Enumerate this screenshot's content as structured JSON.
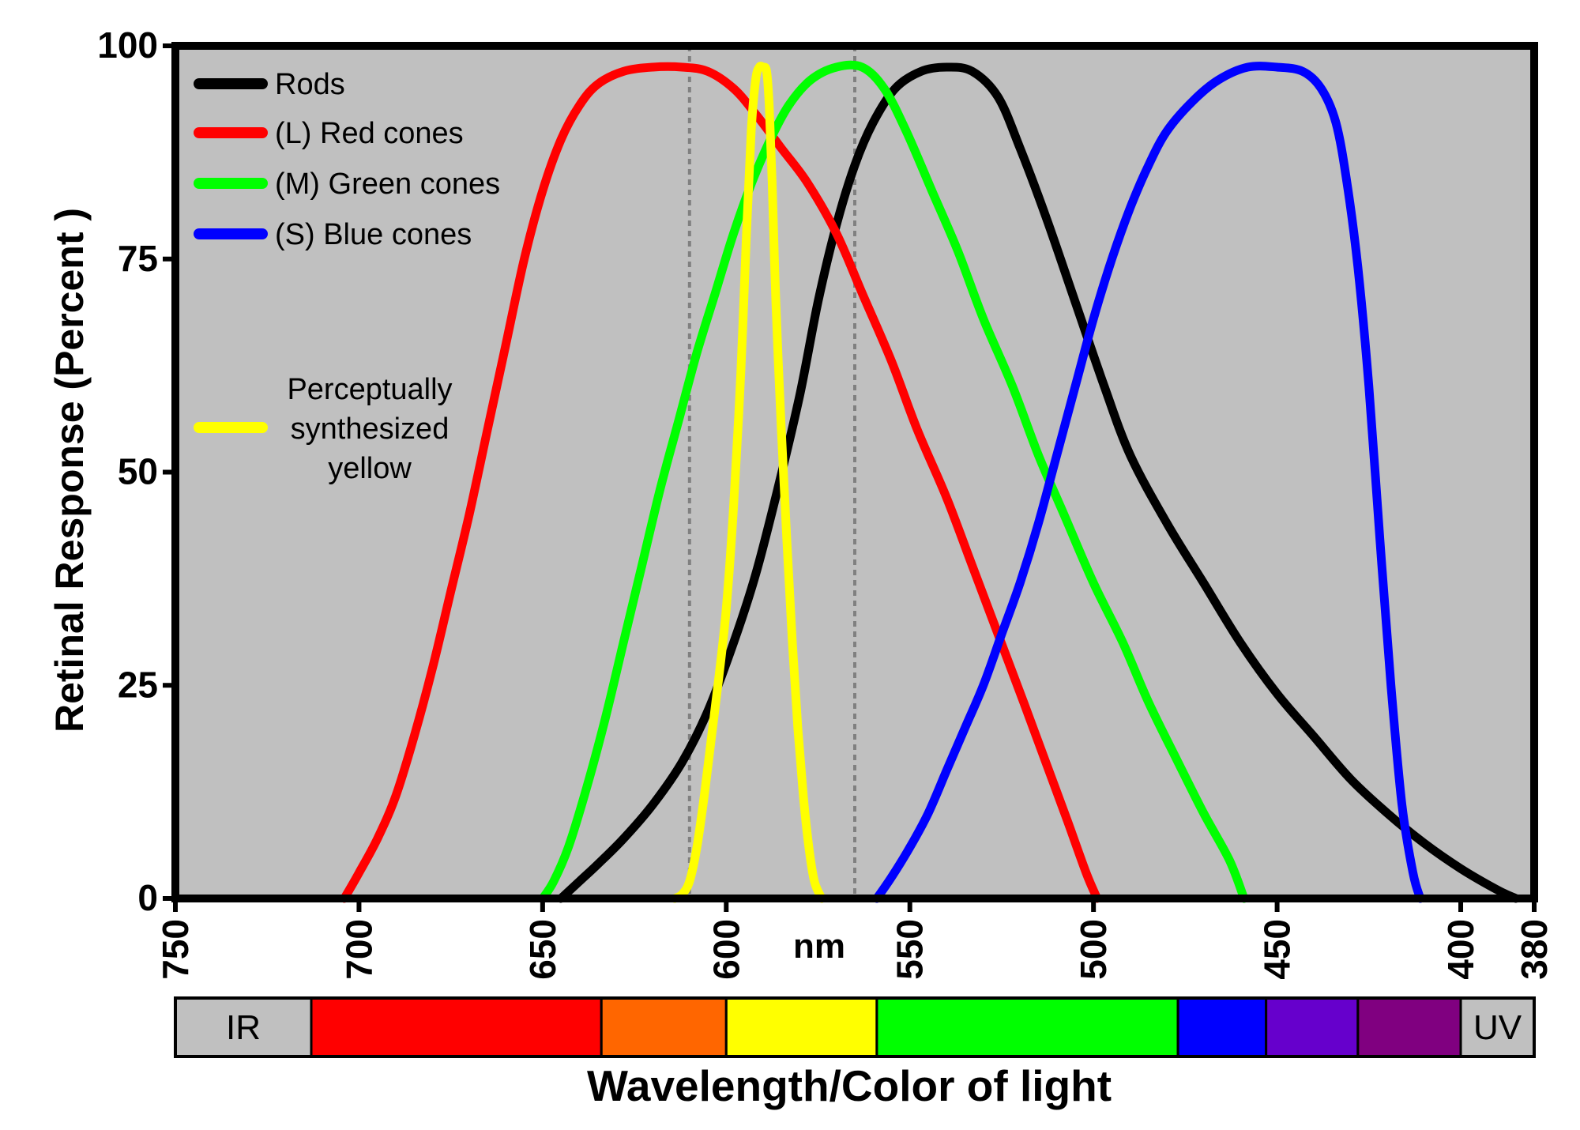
{
  "chart_data": {
    "type": "line",
    "title": "",
    "xlabel": "Wavelength/Color of light",
    "xunit": "nm",
    "ylabel": "Retinal Response (Percent )",
    "xlim": [
      750,
      380
    ],
    "ylim": [
      0,
      100
    ],
    "x_ticks": [
      750,
      700,
      650,
      600,
      550,
      500,
      450,
      400,
      380
    ],
    "y_ticks": [
      0,
      25,
      50,
      75,
      100
    ],
    "x_axis_reversed": true,
    "grid": false,
    "legend_position": "top-left",
    "background": "#c0c0c0",
    "reference_lines": [
      {
        "x": 610,
        "style": "dotted",
        "color": "#808080"
      },
      {
        "x": 565,
        "style": "dotted",
        "color": "#808080"
      }
    ],
    "series": [
      {
        "name": "Rods",
        "color": "#000000",
        "points": [
          [
            645,
            0
          ],
          [
            640,
            2
          ],
          [
            635,
            4
          ],
          [
            628,
            7
          ],
          [
            620,
            11
          ],
          [
            612,
            16
          ],
          [
            605,
            22
          ],
          [
            598,
            30
          ],
          [
            592,
            38
          ],
          [
            586,
            48
          ],
          [
            580,
            59
          ],
          [
            575,
            70
          ],
          [
            570,
            79
          ],
          [
            565,
            86
          ],
          [
            560,
            91
          ],
          [
            554,
            95
          ],
          [
            547,
            97
          ],
          [
            540,
            97.5
          ],
          [
            533,
            97
          ],
          [
            526,
            94
          ],
          [
            520,
            88
          ],
          [
            513,
            80
          ],
          [
            505,
            70
          ],
          [
            497,
            60
          ],
          [
            490,
            52
          ],
          [
            480,
            44
          ],
          [
            470,
            37
          ],
          [
            460,
            30
          ],
          [
            450,
            24
          ],
          [
            440,
            19
          ],
          [
            430,
            14
          ],
          [
            420,
            10
          ],
          [
            410,
            6.5
          ],
          [
            400,
            3.5
          ],
          [
            390,
            1
          ],
          [
            385,
            0
          ]
        ]
      },
      {
        "name": "(L) Red cones",
        "color": "#ff0000",
        "points": [
          [
            704,
            0
          ],
          [
            700,
            3
          ],
          [
            695,
            7
          ],
          [
            690,
            12
          ],
          [
            685,
            19
          ],
          [
            680,
            27
          ],
          [
            675,
            36
          ],
          [
            670,
            45
          ],
          [
            665,
            55
          ],
          [
            660,
            65
          ],
          [
            655,
            75
          ],
          [
            650,
            83
          ],
          [
            645,
            89
          ],
          [
            640,
            93
          ],
          [
            635,
            95.5
          ],
          [
            628,
            97
          ],
          [
            620,
            97.5
          ],
          [
            612,
            97.5
          ],
          [
            605,
            97
          ],
          [
            598,
            95
          ],
          [
            592,
            92
          ],
          [
            585,
            88
          ],
          [
            578,
            84
          ],
          [
            570,
            78
          ],
          [
            563,
            71
          ],
          [
            555,
            63
          ],
          [
            548,
            55
          ],
          [
            540,
            47
          ],
          [
            533,
            39
          ],
          [
            526,
            31
          ],
          [
            519,
            23
          ],
          [
            513,
            16
          ],
          [
            507,
            9
          ],
          [
            502,
            3
          ],
          [
            499,
            0
          ]
        ]
      },
      {
        "name": "(M) Green cones",
        "color": "#00ff00",
        "points": [
          [
            650,
            0
          ],
          [
            647,
            2
          ],
          [
            643,
            6
          ],
          [
            638,
            13
          ],
          [
            633,
            21
          ],
          [
            628,
            30
          ],
          [
            623,
            39
          ],
          [
            618,
            48
          ],
          [
            613,
            56
          ],
          [
            608,
            64
          ],
          [
            603,
            71
          ],
          [
            598,
            78
          ],
          [
            593,
            84
          ],
          [
            588,
            89
          ],
          [
            583,
            93
          ],
          [
            577,
            96
          ],
          [
            570,
            97.5
          ],
          [
            563,
            97.5
          ],
          [
            557,
            95
          ],
          [
            551,
            90
          ],
          [
            544,
            83
          ],
          [
            537,
            76
          ],
          [
            530,
            68
          ],
          [
            522,
            60
          ],
          [
            515,
            52
          ],
          [
            508,
            45
          ],
          [
            500,
            37
          ],
          [
            492,
            30
          ],
          [
            485,
            23
          ],
          [
            477,
            16
          ],
          [
            470,
            10
          ],
          [
            463,
            4.5
          ],
          [
            459,
            0
          ]
        ]
      },
      {
        "name": "(S) Blue cones",
        "color": "#0000ff",
        "points": [
          [
            559,
            0
          ],
          [
            555,
            2.5
          ],
          [
            550,
            6
          ],
          [
            545,
            10
          ],
          [
            540,
            15
          ],
          [
            535,
            20
          ],
          [
            530,
            25
          ],
          [
            525,
            31
          ],
          [
            520,
            37
          ],
          [
            515,
            44
          ],
          [
            510,
            52
          ],
          [
            505,
            60
          ],
          [
            500,
            68
          ],
          [
            495,
            75
          ],
          [
            490,
            81
          ],
          [
            485,
            86
          ],
          [
            480,
            90
          ],
          [
            473,
            93.5
          ],
          [
            466,
            96
          ],
          [
            458,
            97.5
          ],
          [
            450,
            97.5
          ],
          [
            443,
            97
          ],
          [
            438,
            95
          ],
          [
            434,
            91
          ],
          [
            431,
            84
          ],
          [
            428,
            74
          ],
          [
            425,
            60
          ],
          [
            422,
            42
          ],
          [
            419,
            25
          ],
          [
            416,
            11
          ],
          [
            413,
            3
          ],
          [
            411,
            0
          ]
        ]
      },
      {
        "name": "Perceptually synthesized yellow",
        "color": "#ffff00",
        "points": [
          [
            614,
            0
          ],
          [
            612,
            0.5
          ],
          [
            610,
            2
          ],
          [
            608,
            6
          ],
          [
            606,
            12
          ],
          [
            604,
            19
          ],
          [
            602,
            26
          ],
          [
            600,
            34
          ],
          [
            598,
            46
          ],
          [
            596,
            62
          ],
          [
            594.5,
            78
          ],
          [
            593.2,
            90
          ],
          [
            592,
            96
          ],
          [
            591,
            97.5
          ],
          [
            590,
            97.5
          ],
          [
            589,
            97
          ],
          [
            588.3,
            93
          ],
          [
            587.5,
            84
          ],
          [
            586.5,
            70
          ],
          [
            585,
            55
          ],
          [
            583.5,
            42
          ],
          [
            582,
            30
          ],
          [
            580.5,
            20
          ],
          [
            579,
            12
          ],
          [
            577.5,
            6
          ],
          [
            576,
            2
          ],
          [
            574,
            0
          ]
        ]
      }
    ],
    "color_bands": [
      {
        "label": "IR",
        "from": 750,
        "to": 713,
        "color": "#c0c0c0"
      },
      {
        "label": "",
        "from": 713,
        "to": 634,
        "color": "#ff0000"
      },
      {
        "label": "",
        "from": 634,
        "to": 600,
        "color": "#ff6600"
      },
      {
        "label": "",
        "from": 600,
        "to": 559,
        "color": "#ffff00"
      },
      {
        "label": "",
        "from": 559,
        "to": 477,
        "color": "#00ff00"
      },
      {
        "label": "",
        "from": 477,
        "to": 453,
        "color": "#0000ff"
      },
      {
        "label": "",
        "from": 453,
        "to": 428,
        "color": "#6600cc"
      },
      {
        "label": "",
        "from": 428,
        "to": 400,
        "color": "#800080"
      },
      {
        "label": "UV",
        "from": 400,
        "to": 380,
        "color": "#c0c0c0"
      }
    ]
  },
  "legend": {
    "items": [
      {
        "label": "Rods",
        "color": "#000000"
      },
      {
        "label": "(L) Red cones",
        "color": "#ff0000"
      },
      {
        "label": "(M) Green cones",
        "color": "#00ff00"
      },
      {
        "label": "(S) Blue cones",
        "color": "#0000ff"
      }
    ],
    "yellow_label_lines": [
      "Perceptually",
      "synthesized",
      "yellow"
    ],
    "yellow_color": "#ffff00"
  }
}
